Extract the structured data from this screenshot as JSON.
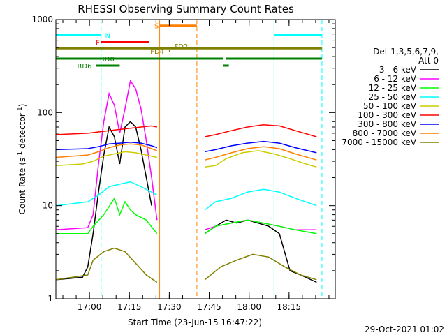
{
  "chart_data": {
    "type": "line",
    "title": "RHESSI Observing Summary Count Rates",
    "xlabel": "Start Time (23-Jun-15 16:47:22)",
    "ylabel_main": "Count Rate (s",
    "ylabel_sup": "-1",
    "ylabel_end": " detector",
    "ylabel_tail": ")",
    "yscale": "log",
    "ylim": [
      1,
      1000
    ],
    "y_tick_labels": [
      "1",
      "10",
      "100",
      "1000"
    ],
    "x_tick_labels": [
      "17:00",
      "17:15",
      "17:30",
      "17:45",
      "18:00",
      "18:15"
    ],
    "xlim_minutes_after_start": [
      0,
      105
    ],
    "legend_header": [
      "Det 1,3,5,6,7,9,",
      "Att 0"
    ],
    "legend_placement": "right",
    "footer_date": "29-Oct-2021 01:02",
    "series": [
      {
        "name": "3 - 6 keV",
        "color": "#000000",
        "segments": [
          [
            [
              0,
              1.6
            ],
            [
              10,
              1.7
            ],
            [
              12,
              2.2
            ],
            [
              14,
              5
            ],
            [
              16,
              14
            ],
            [
              18,
              35
            ],
            [
              20,
              70
            ],
            [
              22,
              55
            ],
            [
              24,
              28
            ],
            [
              26,
              70
            ],
            [
              28,
              80
            ],
            [
              30,
              70
            ],
            [
              32,
              40
            ],
            [
              34,
              20
            ],
            [
              36,
              10
            ]
          ],
          [
            [
              56,
              5
            ],
            [
              60,
              6
            ],
            [
              64,
              7
            ],
            [
              68,
              6.5
            ],
            [
              72,
              7
            ],
            [
              76,
              6.5
            ],
            [
              80,
              6
            ],
            [
              84,
              5
            ],
            [
              88,
              2
            ],
            [
              92,
              1.8
            ],
            [
              98,
              1.5
            ]
          ]
        ]
      },
      {
        "name": "6 - 12 keV",
        "color": "#ff00ff",
        "segments": [
          [
            [
              0,
              5.5
            ],
            [
              12,
              5.8
            ],
            [
              14,
              8
            ],
            [
              16,
              28
            ],
            [
              18,
              80
            ],
            [
              20,
              160
            ],
            [
              22,
              120
            ],
            [
              24,
              60
            ],
            [
              26,
              110
            ],
            [
              28,
              220
            ],
            [
              30,
              180
            ],
            [
              32,
              110
            ],
            [
              34,
              50
            ],
            [
              36,
              20
            ],
            [
              38,
              7
            ]
          ],
          [
            [
              56,
              5.5
            ],
            [
              60,
              6
            ],
            [
              66,
              6.5
            ],
            [
              72,
              7
            ],
            [
              78,
              6.5
            ],
            [
              84,
              6
            ],
            [
              90,
              5.5
            ],
            [
              98,
              5.5
            ]
          ]
        ]
      },
      {
        "name": "12 - 25 keV",
        "color": "#00ff00",
        "segments": [
          [
            [
              0,
              5
            ],
            [
              12,
              5
            ],
            [
              14,
              6
            ],
            [
              18,
              8
            ],
            [
              22,
              12
            ],
            [
              24,
              8
            ],
            [
              26,
              11
            ],
            [
              28,
              9
            ],
            [
              30,
              8
            ],
            [
              34,
              7
            ],
            [
              38,
              5
            ]
          ],
          [
            [
              56,
              5
            ],
            [
              60,
              6
            ],
            [
              66,
              6.5
            ],
            [
              72,
              7
            ],
            [
              78,
              6.5
            ],
            [
              84,
              6
            ],
            [
              90,
              5.5
            ],
            [
              98,
              5
            ]
          ]
        ]
      },
      {
        "name": "25 - 50 keV",
        "color": "#00ffff",
        "segments": [
          [
            [
              0,
              10
            ],
            [
              12,
              11
            ],
            [
              16,
              13
            ],
            [
              20,
              16
            ],
            [
              24,
              17
            ],
            [
              28,
              18
            ],
            [
              32,
              16
            ],
            [
              36,
              14
            ],
            [
              38,
              13
            ]
          ],
          [
            [
              56,
              9
            ],
            [
              60,
              11
            ],
            [
              66,
              12
            ],
            [
              72,
              14
            ],
            [
              78,
              15
            ],
            [
              84,
              14
            ],
            [
              90,
              12
            ],
            [
              98,
              10
            ]
          ]
        ]
      },
      {
        "name": "50 - 100 keV",
        "color": "#cccc00",
        "segments": [
          [
            [
              0,
              27
            ],
            [
              10,
              28
            ],
            [
              14,
              30
            ],
            [
              18,
              34
            ],
            [
              22,
              36
            ],
            [
              26,
              38
            ],
            [
              30,
              37
            ],
            [
              34,
              35
            ],
            [
              38,
              33
            ]
          ],
          [
            [
              56,
              26
            ],
            [
              60,
              27
            ],
            [
              64,
              32
            ],
            [
              70,
              37
            ],
            [
              76,
              39
            ],
            [
              82,
              36
            ],
            [
              88,
              32
            ],
            [
              94,
              28
            ],
            [
              98,
              26
            ]
          ]
        ]
      },
      {
        "name": "100 - 300 keV",
        "color": "#ff0000",
        "segments": [
          [
            [
              0,
              58
            ],
            [
              12,
              60
            ],
            [
              16,
              62
            ],
            [
              20,
              64
            ],
            [
              24,
              66
            ],
            [
              28,
              68
            ],
            [
              32,
              70
            ],
            [
              36,
              72
            ],
            [
              38,
              70
            ]
          ],
          [
            [
              56,
              55
            ],
            [
              60,
              58
            ],
            [
              66,
              64
            ],
            [
              72,
              70
            ],
            [
              78,
              74
            ],
            [
              84,
              72
            ],
            [
              90,
              64
            ],
            [
              98,
              55
            ]
          ]
        ]
      },
      {
        "name": "300 - 800 keV",
        "color": "#0000ff",
        "segments": [
          [
            [
              0,
              40
            ],
            [
              12,
              41
            ],
            [
              16,
              43
            ],
            [
              20,
              46
            ],
            [
              24,
              47
            ],
            [
              28,
              48
            ],
            [
              32,
              47
            ],
            [
              36,
              44
            ],
            [
              38,
              42
            ]
          ],
          [
            [
              56,
              38
            ],
            [
              60,
              40
            ],
            [
              66,
              44
            ],
            [
              72,
              47
            ],
            [
              78,
              49
            ],
            [
              84,
              47
            ],
            [
              90,
              42
            ],
            [
              98,
              37
            ]
          ]
        ]
      },
      {
        "name": "800 - 7000 keV",
        "color": "#ff8000",
        "segments": [
          [
            [
              0,
              33
            ],
            [
              12,
              35
            ],
            [
              16,
              38
            ],
            [
              20,
              42
            ],
            [
              24,
              45
            ],
            [
              28,
              46
            ],
            [
              32,
              45
            ],
            [
              36,
              41
            ],
            [
              38,
              39
            ]
          ],
          [
            [
              56,
              31
            ],
            [
              60,
              33
            ],
            [
              66,
              37
            ],
            [
              72,
              41
            ],
            [
              78,
              43
            ],
            [
              84,
              41
            ],
            [
              90,
              36
            ],
            [
              98,
              31
            ]
          ]
        ]
      },
      {
        "name": "7000 - 15000 keV",
        "color": "#808000",
        "segments": [
          [
            [
              0,
              1.6
            ],
            [
              12,
              1.8
            ],
            [
              14,
              2.6
            ],
            [
              18,
              3.2
            ],
            [
              22,
              3.5
            ],
            [
              26,
              3.2
            ],
            [
              30,
              2.4
            ],
            [
              34,
              1.8
            ],
            [
              38,
              1.5
            ]
          ],
          [
            [
              56,
              1.6
            ],
            [
              62,
              2.2
            ],
            [
              68,
              2.6
            ],
            [
              74,
              3
            ],
            [
              80,
              2.8
            ],
            [
              86,
              2.2
            ],
            [
              92,
              1.8
            ],
            [
              98,
              1.6
            ]
          ]
        ]
      }
    ],
    "flag_bars": [
      {
        "label": "N",
        "color": "#00ffff",
        "y_value": 680,
        "segments": [
          [
            0,
            17
          ],
          [
            82,
            100
          ]
        ],
        "label_minute": 18.5
      },
      {
        "label": "F",
        "color": "#ff0000",
        "y_value": 570,
        "segments": [
          [
            17,
            35
          ]
        ],
        "label_minute": 15
      },
      {
        "label": "S",
        "color": "#ff8000",
        "y_value": 860,
        "segments": [
          [
            39,
            53
          ]
        ],
        "label_minute": 37
      },
      {
        "label": "",
        "color": "#808000",
        "y_value": 490,
        "segments": [
          [
            0,
            100
          ]
        ],
        "label_minute": 0
      },
      {
        "label": "FD2",
        "color": "#808000",
        "y_value": 520,
        "segments": [],
        "label_minute": 44.5
      },
      {
        "label": "FD4",
        "color": "#808000",
        "y_value": 460,
        "segments": [
          [
            42.5,
            43
          ]
        ],
        "label_minute": 35.5
      },
      {
        "label": "RD0",
        "color": "#008000",
        "y_value": 380,
        "segments": [
          [
            0,
            63
          ],
          [
            64,
            100
          ]
        ],
        "label_minute": 16.5
      },
      {
        "label": "RD6",
        "color": "#008000",
        "y_value": 320,
        "segments": [
          [
            15,
            24
          ],
          [
            63,
            65
          ]
        ],
        "label_minute": 8
      }
    ],
    "vertical_markers": [
      {
        "minute": 17,
        "color": "#00ffff",
        "style": "dashed"
      },
      {
        "minute": 39,
        "color": "#ff8000",
        "style": "solid"
      },
      {
        "minute": 53,
        "color": "#ff8000",
        "style": "dashed"
      },
      {
        "minute": 82,
        "color": "#00ffff",
        "style": "solid"
      },
      {
        "minute": 100,
        "color": "#00ffff",
        "style": "dashed"
      }
    ]
  }
}
